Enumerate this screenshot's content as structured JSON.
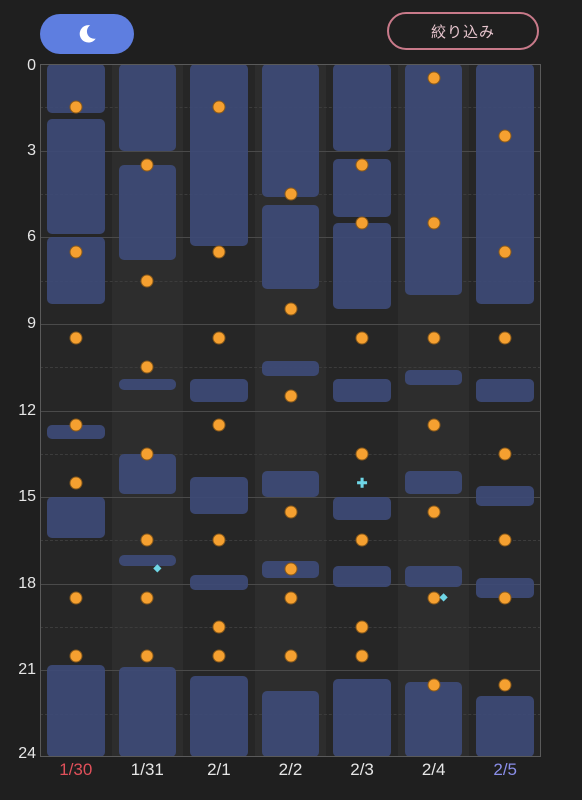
{
  "header": {
    "night_icon": "moon-icon",
    "filter_label": "絞り込み"
  },
  "colors": {
    "background": "#1f1f1f",
    "toggle": "#5e7ee0",
    "filter_border": "#c97a8a",
    "sleep": "#3d4a76",
    "feed": "#f5a030",
    "marker": "#6fd6e6",
    "sunday_label": "#e0505a",
    "saturday_label": "#8a8ee8"
  },
  "y_axis": {
    "min_hour": 0,
    "max_hour": 24,
    "labels": [
      "0",
      "3",
      "6",
      "9",
      "12",
      "15",
      "18",
      "21",
      "24"
    ]
  },
  "days": [
    {
      "label": "1/30",
      "label_color": "#e0505a",
      "sleep": [
        [
          0,
          1.7
        ],
        [
          1.9,
          5.9
        ],
        [
          6.0,
          8.3
        ],
        [
          12.5,
          13.0
        ],
        [
          15.0,
          16.4
        ],
        [
          20.8,
          24
        ]
      ],
      "feeds": [
        1.5,
        6.5,
        9.5,
        12.5,
        14.5,
        18.5,
        20.5
      ],
      "markers": []
    },
    {
      "label": "1/31",
      "label_color": "#e6e6e6",
      "sleep": [
        [
          0,
          3.0
        ],
        [
          3.5,
          6.8
        ],
        [
          10.9,
          11.3
        ],
        [
          13.5,
          14.9
        ],
        [
          17.0,
          17.4
        ],
        [
          20.9,
          24
        ]
      ],
      "feeds": [
        3.5,
        7.5,
        10.5,
        13.5,
        16.5,
        18.5,
        20.5
      ],
      "markers": [
        {
          "type": "diamond",
          "hour": 17.5
        }
      ]
    },
    {
      "label": "2/1",
      "label_color": "#e6e6e6",
      "sleep": [
        [
          0,
          6.3
        ],
        [
          10.9,
          11.7
        ],
        [
          14.3,
          15.6
        ],
        [
          17.7,
          18.2
        ],
        [
          21.2,
          24
        ]
      ],
      "feeds": [
        1.5,
        6.5,
        9.5,
        12.5,
        16.5,
        19.5,
        20.5
      ],
      "markers": []
    },
    {
      "label": "2/2",
      "label_color": "#e6e6e6",
      "sleep": [
        [
          0,
          4.6
        ],
        [
          4.9,
          7.8
        ],
        [
          10.3,
          10.8
        ],
        [
          14.1,
          15.0
        ],
        [
          17.2,
          17.8
        ],
        [
          21.7,
          24
        ]
      ],
      "feeds": [
        4.5,
        8.5,
        11.5,
        15.5,
        17.5,
        18.5,
        20.5
      ],
      "markers": []
    },
    {
      "label": "2/3",
      "label_color": "#e6e6e6",
      "sleep": [
        [
          0,
          3.0
        ],
        [
          3.3,
          5.3
        ],
        [
          5.5,
          8.5
        ],
        [
          10.9,
          11.7
        ],
        [
          15.0,
          15.8
        ],
        [
          17.4,
          18.1
        ],
        [
          21.3,
          24
        ]
      ],
      "feeds": [
        3.5,
        5.5,
        9.5,
        13.5,
        16.5,
        19.5,
        20.5
      ],
      "markers": [
        {
          "type": "cross",
          "hour": 14.5
        }
      ]
    },
    {
      "label": "2/4",
      "label_color": "#e6e6e6",
      "sleep": [
        [
          0,
          8.0
        ],
        [
          10.6,
          11.1
        ],
        [
          14.1,
          14.9
        ],
        [
          17.4,
          18.1
        ],
        [
          21.4,
          24
        ]
      ],
      "feeds": [
        0.5,
        5.5,
        9.5,
        12.5,
        15.5,
        18.5,
        21.5
      ],
      "markers": [
        {
          "type": "diamond",
          "hour": 18.5
        }
      ]
    },
    {
      "label": "2/5",
      "label_color": "#8a8ee8",
      "sleep": [
        [
          0,
          8.3
        ],
        [
          10.9,
          11.7
        ],
        [
          14.6,
          15.3
        ],
        [
          17.8,
          18.5
        ],
        [
          21.9,
          24
        ]
      ],
      "feeds": [
        2.5,
        6.5,
        9.5,
        13.5,
        16.5,
        18.5,
        21.5
      ],
      "markers": []
    }
  ]
}
